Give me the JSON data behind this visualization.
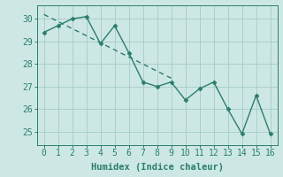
{
  "x": [
    0,
    1,
    2,
    3,
    4,
    5,
    6,
    7,
    8,
    9,
    10,
    11,
    12,
    13,
    14,
    15,
    16
  ],
  "y": [
    29.4,
    29.7,
    30.0,
    30.1,
    28.9,
    29.7,
    28.5,
    27.2,
    27.0,
    27.2,
    26.4,
    26.9,
    27.2,
    26.0,
    24.9,
    26.6,
    24.9
  ],
  "line_color": "#2a7d6e",
  "marker_color": "#2a7d6e",
  "background_color": "#cde8e4",
  "grid_color": "#aacfcb",
  "xlabel": "Humidex (Indice chaleur)",
  "xlabel_fontsize": 7.5,
  "tick_fontsize": 7,
  "ylim": [
    24.4,
    30.6
  ],
  "xlim": [
    -0.5,
    16.5
  ],
  "yticks": [
    25,
    26,
    27,
    28,
    29,
    30
  ],
  "xticks": [
    0,
    1,
    2,
    3,
    4,
    5,
    6,
    7,
    8,
    9,
    10,
    11,
    12,
    13,
    14,
    15,
    16
  ],
  "trend_x_start": 0,
  "trend_x_end": 9.2
}
